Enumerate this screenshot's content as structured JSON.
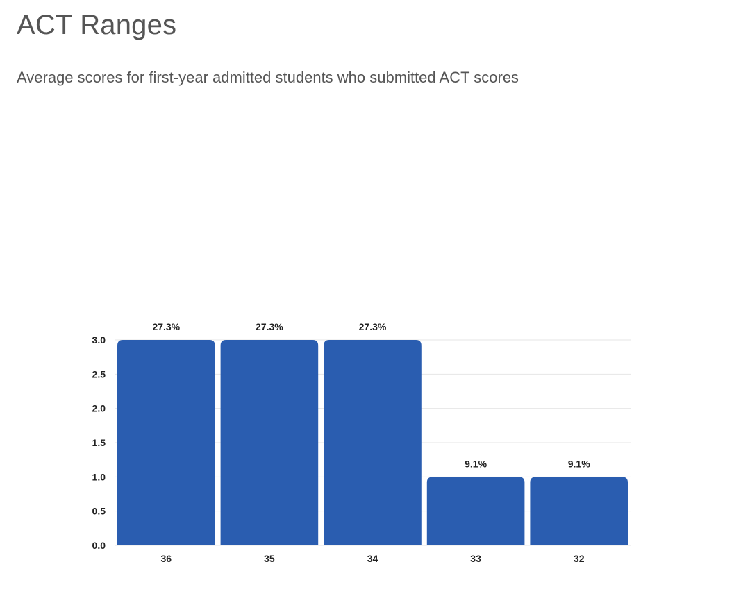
{
  "header": {
    "title": "ACT Ranges",
    "subtitle": "Average scores for first-year admitted students who submitted ACT scores"
  },
  "chart_data": {
    "type": "bar",
    "categories": [
      "36",
      "35",
      "34",
      "33",
      "32"
    ],
    "values": [
      3,
      3,
      3,
      1,
      1
    ],
    "data_labels": [
      "27.3%",
      "27.3%",
      "27.3%",
      "9.1%",
      "9.1%"
    ],
    "ylim": [
      0,
      3
    ],
    "yticks": [
      "0.0",
      "0.5",
      "1.0",
      "1.5",
      "2.0",
      "2.5",
      "3.0"
    ],
    "grid": true,
    "bar_color": "#2a5db0",
    "grid_color": "#e6e6e6"
  }
}
